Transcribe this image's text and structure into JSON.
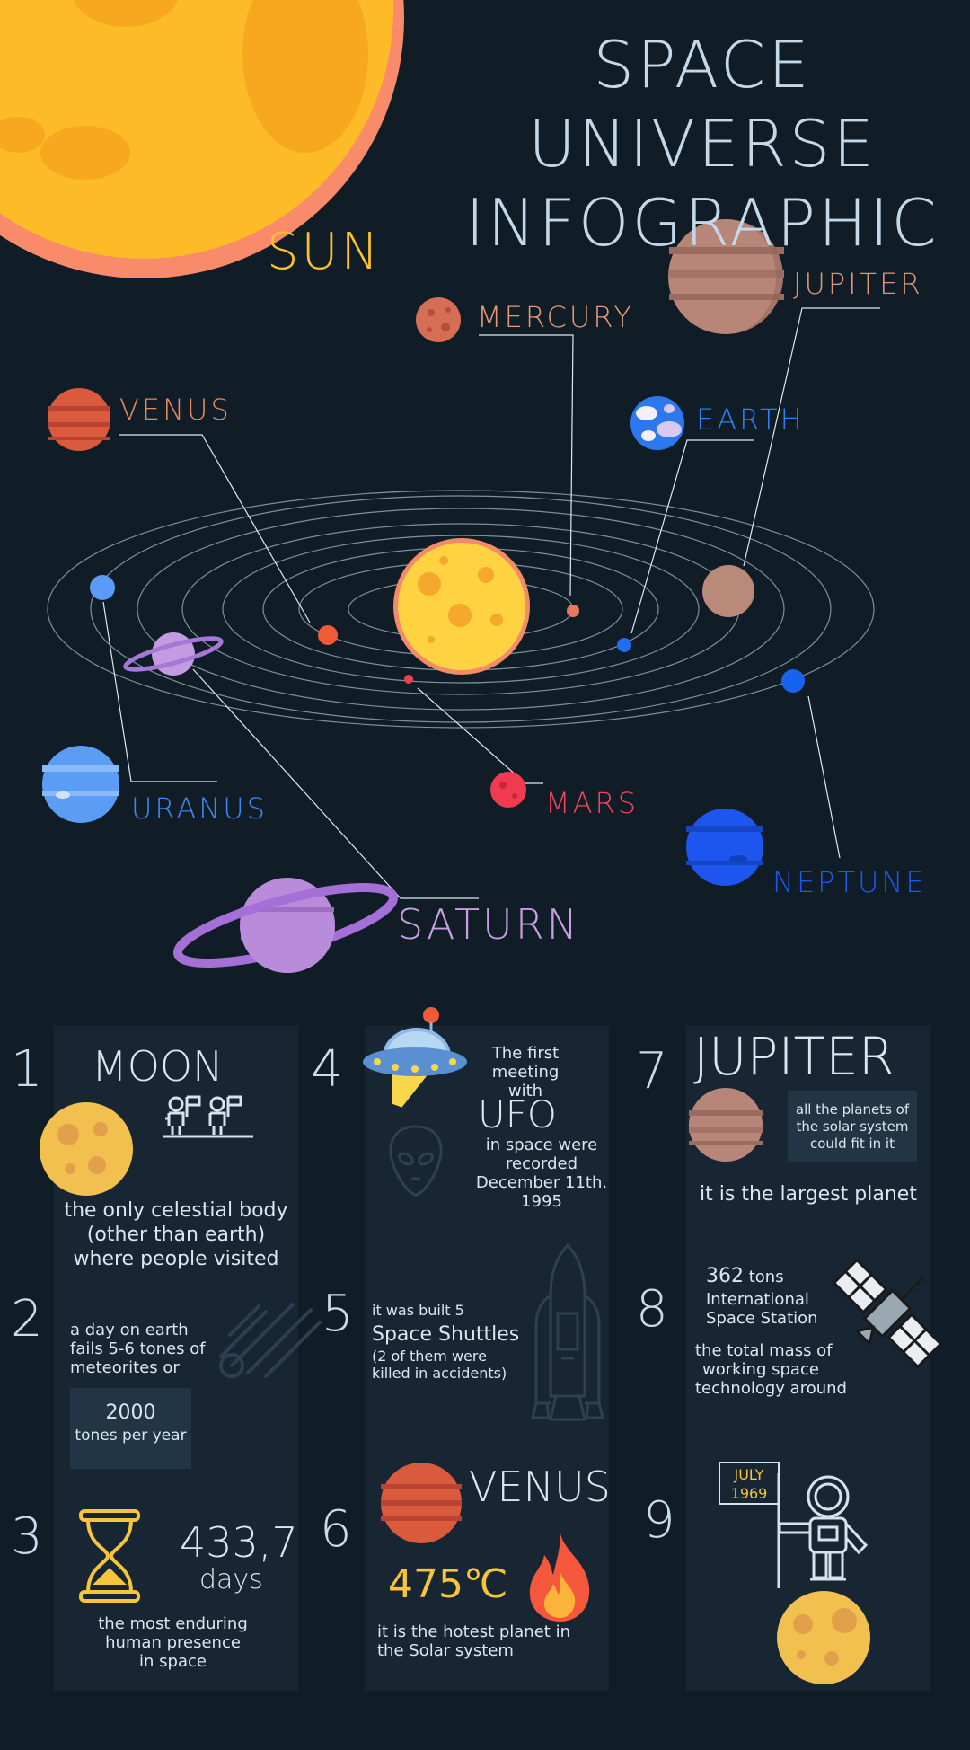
{
  "header": {
    "title_line1": "SPACE UNIVERSE",
    "title_line2": "INFOGRAPHIC"
  },
  "planets": {
    "sun": "SUN",
    "mercury": "MERCURY",
    "venus": "VENUS",
    "earth": "EARTH",
    "jupiter": "JUPITER",
    "mars": "MARS",
    "uranus": "URANUS",
    "neptune": "NEPTUNE",
    "saturn": "SATURN"
  },
  "colors": {
    "background": "#101d27",
    "panel": "#172632",
    "sun": "#fdc52a",
    "venus_label": "#e38a5f",
    "earth_label": "#2f7ff5",
    "uranus_label": "#3f87f3",
    "neptune_label": "#1e5af0",
    "mars_label": "#f0455e",
    "saturn_label": "#c79ee0",
    "jupiter_label": "#e0947a",
    "mercury_label": "#e69a78",
    "yellow_text": "#f7c43c"
  },
  "facts": {
    "f1": {
      "num": "1",
      "title": "MOON",
      "line1": "the only celestial body",
      "line2": "(other than earth)",
      "line3": "where people visited"
    },
    "f2": {
      "num": "2",
      "line1": "a day on earth",
      "line2": "fails 5-6 tones of",
      "line3": "meteorites or",
      "box_value": "2000",
      "box_unit": "tones per year"
    },
    "f3": {
      "num": "3",
      "value": "433,7",
      "unit": "days",
      "line1": "the most enduring",
      "line2": "human presence",
      "line3": "in space"
    },
    "f4": {
      "num": "4",
      "line1": "The first",
      "line2": "meeting with",
      "title": "UFO",
      "line3": "in space were",
      "line4": "recorded",
      "line5": "December 11th.",
      "line6": "1995"
    },
    "f5": {
      "num": "5",
      "line1": "it was built 5",
      "title": "Space Shuttles",
      "line2": "(2 of them were",
      "line3": "killed in accidents)"
    },
    "f6": {
      "num": "6",
      "title": "VENUS",
      "temp": "475℃",
      "line1": "it is the hotest planet in",
      "line2": "the Solar system"
    },
    "f7": {
      "num": "7",
      "title": "JUPITER",
      "box1": "all the planets of",
      "box2": "the solar system",
      "box3": "could fit in it",
      "line1": "it is the largest planet"
    },
    "f8": {
      "num": "8",
      "value": "362",
      "unit": "tons",
      "line1": "International",
      "line2": "Space Station",
      "line3": "the total mass of",
      "line4": "working space",
      "line5": "technology around"
    },
    "f9": {
      "num": "9",
      "flag1": "JULY",
      "flag2": "1969"
    }
  }
}
